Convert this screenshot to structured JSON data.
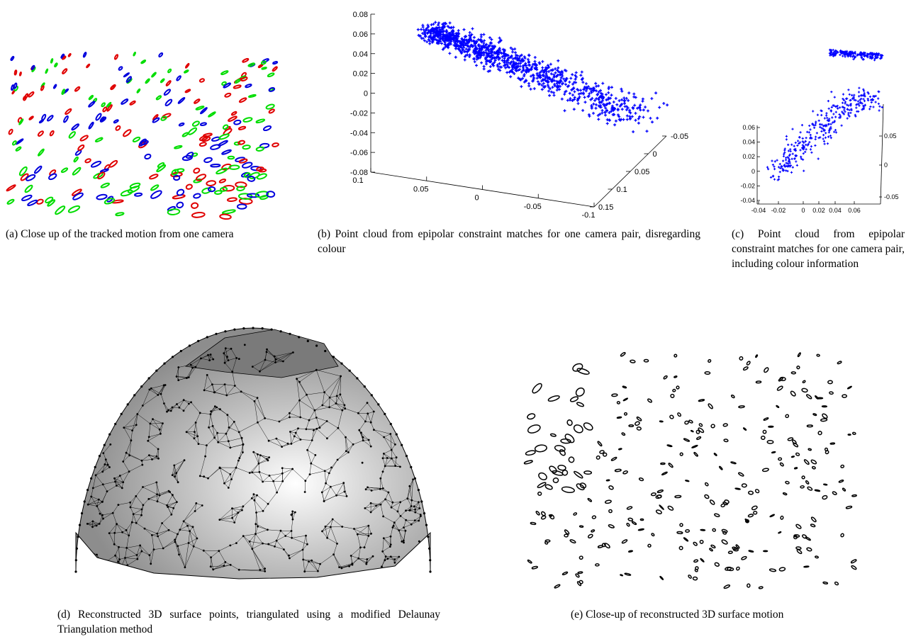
{
  "figures": [
    {
      "id": "a",
      "caption": "(a) Close up of the tracked motion from one camera"
    },
    {
      "id": "b",
      "caption": "(b) Point cloud from epipolar constraint matches for one camera pair, disregarding colour"
    },
    {
      "id": "c",
      "caption": "(c) Point cloud from epipolar constraint matches for one camera pair, including colour information"
    },
    {
      "id": "d",
      "caption": "(d) Reconstructed 3D surface points, triangulated using a modified Delaunay Triangulation method"
    },
    {
      "id": "e",
      "caption": "(e) Close-up of reconstructed 3D surface motion"
    }
  ],
  "colors": {
    "red": "#e00000",
    "green": "#00dd00",
    "blue": "#0000dd",
    "cloud": "#0000ff",
    "mesh_fill": "#a9a9a9",
    "mesh_cap": "#7a7a7a",
    "ink": "#000000"
  },
  "chart_data": [
    {
      "type": "scatter",
      "panel": "b",
      "title": "",
      "z_ticks": [
        "0.08",
        "0.06",
        "0.04",
        "0.02",
        "0",
        "-0.02",
        "-0.04",
        "-0.06",
        "-0.08"
      ],
      "x_ticks": [
        "0.1",
        "0.05",
        "0",
        "-0.05",
        "-0.1"
      ],
      "y_ticks": [
        "-0.05",
        "0",
        "0.05",
        "0.1",
        "0.15"
      ],
      "zlim": [
        -0.08,
        0.08
      ],
      "xlim": [
        0.1,
        -0.1
      ],
      "ylim": [
        -0.05,
        0.15
      ],
      "series": [
        {
          "color": "#0000ff",
          "marker": "+"
        }
      ]
    },
    {
      "type": "scatter",
      "panel": "c",
      "title": "",
      "z_ticks": [
        "0.06",
        "0.04",
        "0.02",
        "0",
        "-0.02",
        "-0.04"
      ],
      "x_ticks": [
        "-0.04",
        "-0.02",
        "0",
        "0.02",
        "0.04",
        "0.06"
      ],
      "y_ticks": [
        "0.05",
        "0",
        "-0.05"
      ],
      "zlim": [
        -0.05,
        0.065
      ],
      "xlim": [
        -0.045,
        0.07
      ],
      "ylim": [
        -0.06,
        0.06
      ],
      "series": [
        {
          "color": "#0000ff",
          "marker": "+"
        }
      ]
    }
  ]
}
